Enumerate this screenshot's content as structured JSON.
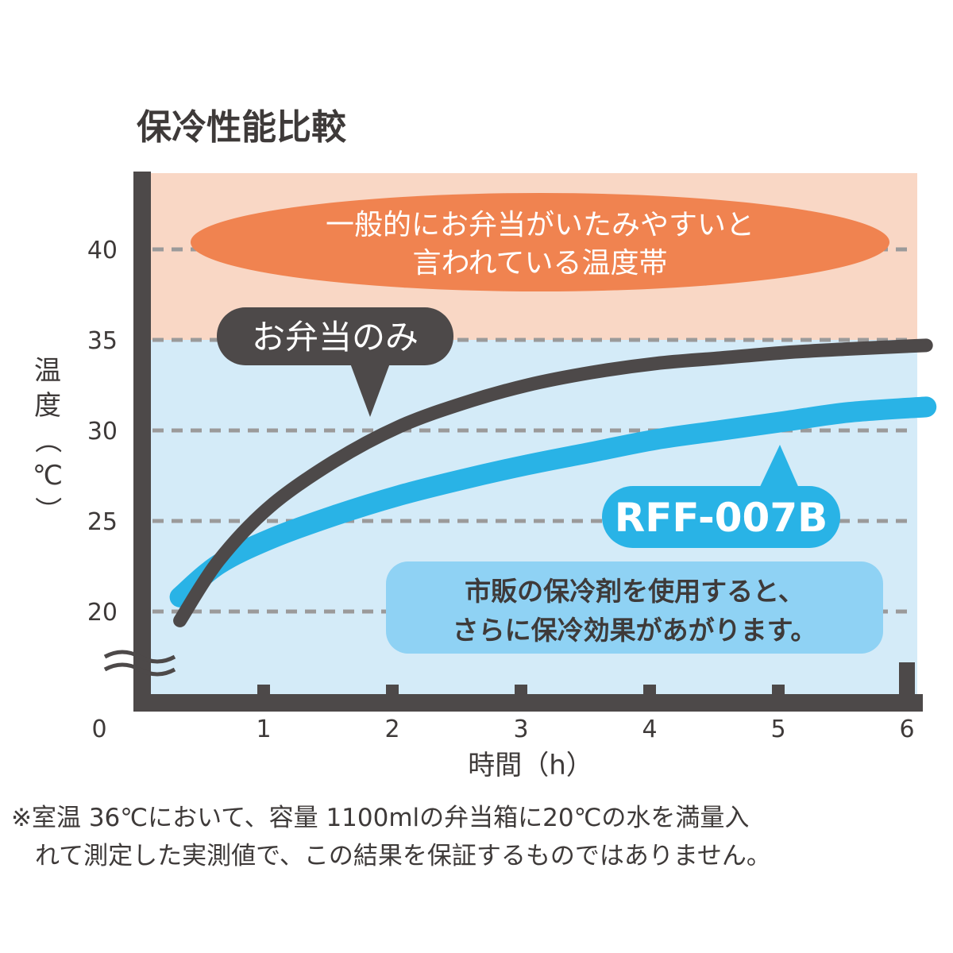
{
  "chart_data": {
    "type": "line",
    "title": "保冷性能比較",
    "xlabel": "時間（h）",
    "ylabel": "温度（℃）",
    "x_ticks": [
      "0",
      "1",
      "2",
      "3",
      "4",
      "5",
      "6"
    ],
    "y_ticks": [
      "20",
      "25",
      "30",
      "35",
      "40"
    ],
    "xlim": [
      0,
      6
    ],
    "ylim": [
      20,
      44
    ],
    "grid": true,
    "series": [
      {
        "name": "お弁当のみ",
        "color": "#4d4949",
        "x": [
          0.3,
          0.6,
          1.0,
          1.5,
          2.0,
          2.5,
          3.0,
          3.5,
          4.0,
          4.5,
          5.0,
          5.5,
          6.1
        ],
        "values": [
          19.5,
          22.8,
          25.8,
          28.3,
          30.2,
          31.5,
          32.5,
          33.2,
          33.7,
          34.0,
          34.3,
          34.5,
          34.7
        ]
      },
      {
        "name": "RFF-007B",
        "color": "#29b3e6",
        "x": [
          0.3,
          0.6,
          1.0,
          1.5,
          2.0,
          2.5,
          3.0,
          3.5,
          4.0,
          4.5,
          5.0,
          5.5,
          6.1
        ],
        "values": [
          20.8,
          22.6,
          24.0,
          25.3,
          26.4,
          27.3,
          28.1,
          28.8,
          29.5,
          30.0,
          30.5,
          31.0,
          31.3
        ]
      }
    ],
    "bands": [
      {
        "label": "一般的にお弁当がいたみやすいと言われている温度帯",
        "from": 35,
        "to": 44,
        "color": "#f9d7c5"
      },
      {
        "label": "",
        "from": 16,
        "to": 35,
        "color": "#d4ebf8"
      }
    ],
    "annotations": {
      "danger_zone": {
        "line1": "一般的にお弁当がいたみやすいと",
        "line2": "言われている温度帯",
        "color": "#f08350"
      },
      "bento_only": {
        "text": "お弁当のみ",
        "color": "#4d4949"
      },
      "product": {
        "text": "RFF-007B",
        "color": "#29b3e6"
      },
      "ice_pack_note": {
        "line1": "市販の保冷剤を使用すると、",
        "line2": "さらに保冷効果があがります。",
        "color": "#8fd2f4"
      }
    }
  },
  "footnote": {
    "line1": "※室温 36℃において、容量 1100mlの弁当箱に20℃の水を満量入",
    "line2": "れて測定した実測値で、この結果を保証するものではありません。"
  }
}
